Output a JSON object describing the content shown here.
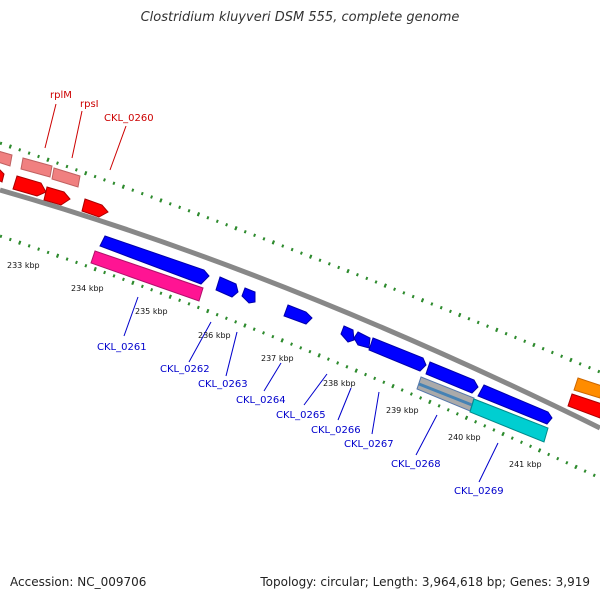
{
  "title": "Clostridium kluyveri DSM 555, complete genome",
  "footer": {
    "accession": "Accession: NC_009706",
    "stats": "Topology: circular; Length: 3,964,618 bp; Genes: 3,919"
  },
  "colors": {
    "backbone": "#888888",
    "tick": "#2e8b2e",
    "red_label": "#cc0000",
    "blue_label": "#0000cc"
  },
  "kbp_ticks": [
    {
      "label": "233 kbp"
    },
    {
      "label": "234 kbp"
    },
    {
      "label": "235 kbp"
    },
    {
      "label": "236 kbp"
    },
    {
      "label": "237 kbp"
    },
    {
      "label": "238 kbp"
    },
    {
      "label": "239 kbp"
    },
    {
      "label": "240 kbp"
    },
    {
      "label": "241 kbp"
    }
  ],
  "genes_top": [
    {
      "name": "rplM"
    },
    {
      "name": "rpsI"
    },
    {
      "name": "CKL_0260"
    }
  ],
  "genes_bottom": [
    {
      "name": "CKL_0261"
    },
    {
      "name": "CKL_0262"
    },
    {
      "name": "CKL_0263"
    },
    {
      "name": "CKL_0264"
    },
    {
      "name": "CKL_0265"
    },
    {
      "name": "CKL_0266"
    },
    {
      "name": "CKL_0267"
    },
    {
      "name": "CKL_0268"
    },
    {
      "name": "CKL_0269"
    }
  ]
}
